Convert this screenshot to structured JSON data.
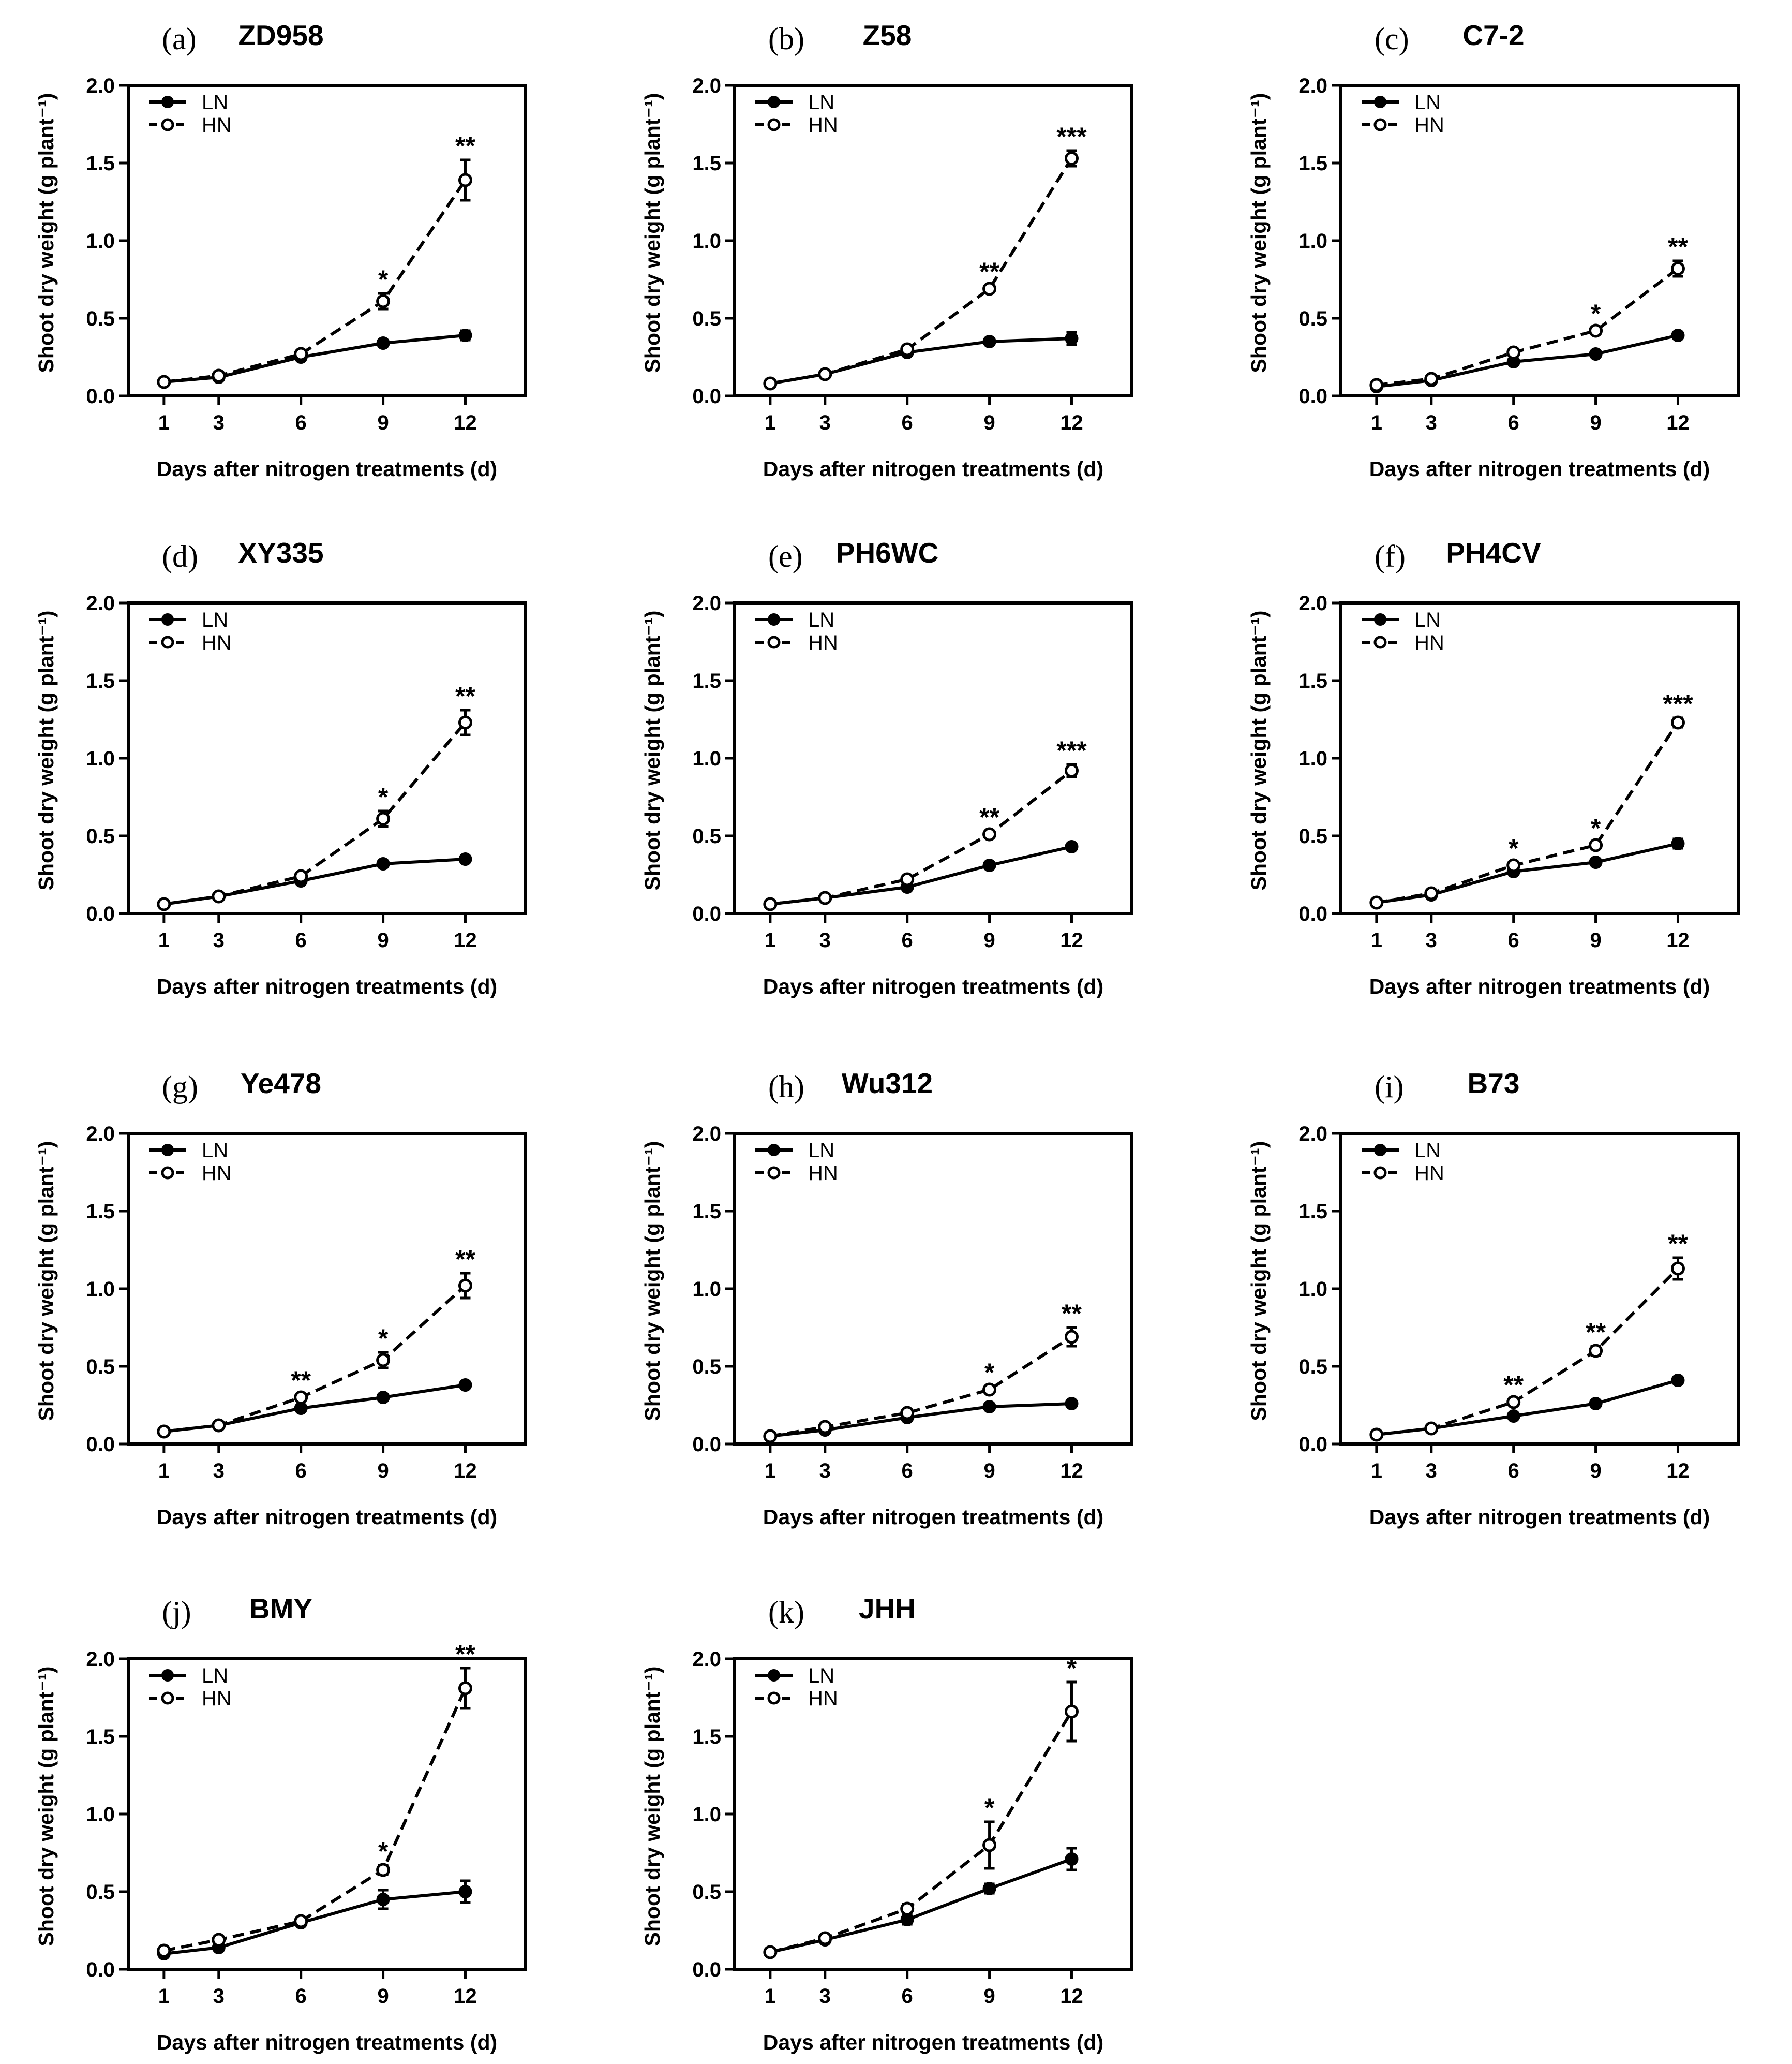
{
  "chart_data": [
    {
      "type": "line",
      "panel": "(a)",
      "title": "ZD958",
      "xlabel": "Days after nitrogen treatments (d)",
      "ylabel": "Shoot dry weight (g plant⁻¹)",
      "categories": [
        "1",
        "3",
        "6",
        "9",
        "12"
      ],
      "ylim": [
        0,
        2.0
      ],
      "yticks": [
        "0.0",
        "0.5",
        "1.0",
        "1.5",
        "2.0"
      ],
      "series": [
        {
          "name": "LN",
          "values": [
            0.09,
            0.12,
            0.25,
            0.34,
            0.39
          ],
          "errors": [
            0.01,
            0.01,
            0.01,
            0.02,
            0.03
          ]
        },
        {
          "name": "HN",
          "values": [
            0.09,
            0.13,
            0.27,
            0.61,
            1.39
          ],
          "errors": [
            0.01,
            0.01,
            0.02,
            0.05,
            0.13
          ]
        }
      ],
      "significance": [
        "",
        "",
        "",
        "*",
        "**"
      ],
      "legend": "top-left",
      "grid": false
    },
    {
      "type": "line",
      "panel": "(b)",
      "title": "Z58",
      "xlabel": "Days after nitrogen treatments (d)",
      "ylabel": "Shoot dry weight (g plant⁻¹)",
      "categories": [
        "1",
        "3",
        "6",
        "9",
        "12"
      ],
      "ylim": [
        0,
        2.0
      ],
      "yticks": [
        "0.0",
        "0.5",
        "1.0",
        "1.5",
        "2.0"
      ],
      "series": [
        {
          "name": "LN",
          "values": [
            0.08,
            0.14,
            0.28,
            0.35,
            0.37
          ],
          "errors": [
            0.01,
            0.01,
            0.01,
            0.01,
            0.04
          ]
        },
        {
          "name": "HN",
          "values": [
            0.08,
            0.14,
            0.3,
            0.69,
            1.53
          ],
          "errors": [
            0.01,
            0.01,
            0.01,
            0.02,
            0.05
          ]
        }
      ],
      "significance": [
        "",
        "",
        "",
        "**",
        "***"
      ],
      "legend": "top-left",
      "grid": false
    },
    {
      "type": "line",
      "panel": "(c)",
      "title": "C7-2",
      "xlabel": "Days after nitrogen treatments (d)",
      "ylabel": "Shoot dry weight (g plant⁻¹)",
      "categories": [
        "1",
        "3",
        "6",
        "9",
        "12"
      ],
      "ylim": [
        0,
        2.0
      ],
      "yticks": [
        "0.0",
        "0.5",
        "1.0",
        "1.5",
        "2.0"
      ],
      "series": [
        {
          "name": "LN",
          "values": [
            0.06,
            0.1,
            0.22,
            0.27,
            0.39
          ],
          "errors": [
            0.01,
            0.01,
            0.01,
            0.01,
            0.01
          ]
        },
        {
          "name": "HN",
          "values": [
            0.07,
            0.11,
            0.28,
            0.42,
            0.82
          ],
          "errors": [
            0.01,
            0.01,
            0.01,
            0.02,
            0.05
          ]
        }
      ],
      "significance": [
        "",
        "",
        "",
        "*",
        "**"
      ],
      "legend": "top-left",
      "grid": false
    },
    {
      "type": "line",
      "panel": "(d)",
      "title": "XY335",
      "xlabel": "Days after nitrogen treatments (d)",
      "ylabel": "Shoot dry weight (g plant⁻¹)",
      "categories": [
        "1",
        "3",
        "6",
        "9",
        "12"
      ],
      "ylim": [
        0,
        2.0
      ],
      "yticks": [
        "0.0",
        "0.5",
        "1.0",
        "1.5",
        "2.0"
      ],
      "series": [
        {
          "name": "LN",
          "values": [
            0.06,
            0.11,
            0.21,
            0.32,
            0.35
          ],
          "errors": [
            0.01,
            0.01,
            0.01,
            0.02,
            0.02
          ]
        },
        {
          "name": "HN",
          "values": [
            0.06,
            0.11,
            0.24,
            0.61,
            1.23
          ],
          "errors": [
            0.01,
            0.01,
            0.01,
            0.05,
            0.08
          ]
        }
      ],
      "significance": [
        "",
        "",
        "",
        "*",
        "**"
      ],
      "legend": "top-left",
      "grid": false
    },
    {
      "type": "line",
      "panel": "(e)",
      "title": "PH6WC",
      "xlabel": "Days after nitrogen treatments (d)",
      "ylabel": "Shoot dry weight (g plant⁻¹)",
      "categories": [
        "1",
        "3",
        "6",
        "9",
        "12"
      ],
      "ylim": [
        0,
        2.0
      ],
      "yticks": [
        "0.0",
        "0.5",
        "1.0",
        "1.5",
        "2.0"
      ],
      "series": [
        {
          "name": "LN",
          "values": [
            0.06,
            0.1,
            0.17,
            0.31,
            0.43
          ],
          "errors": [
            0.01,
            0.01,
            0.01,
            0.01,
            0.01
          ]
        },
        {
          "name": "HN",
          "values": [
            0.06,
            0.1,
            0.22,
            0.51,
            0.92
          ],
          "errors": [
            0.01,
            0.01,
            0.01,
            0.02,
            0.04
          ]
        }
      ],
      "significance": [
        "",
        "",
        "",
        "**",
        "***"
      ],
      "legend": "top-left",
      "grid": false
    },
    {
      "type": "line",
      "panel": "(f)",
      "title": "PH4CV",
      "xlabel": "Days after nitrogen treatments (d)",
      "ylabel": "Shoot dry weight (g plant⁻¹)",
      "categories": [
        "1",
        "3",
        "6",
        "9",
        "12"
      ],
      "ylim": [
        0,
        2.0
      ],
      "yticks": [
        "0.0",
        "0.5",
        "1.0",
        "1.5",
        "2.0"
      ],
      "series": [
        {
          "name": "LN",
          "values": [
            0.07,
            0.12,
            0.27,
            0.33,
            0.45
          ],
          "errors": [
            0.01,
            0.01,
            0.01,
            0.01,
            0.03
          ]
        },
        {
          "name": "HN",
          "values": [
            0.07,
            0.13,
            0.31,
            0.44,
            1.23
          ],
          "errors": [
            0.01,
            0.01,
            0.02,
            0.02,
            0.03
          ]
        }
      ],
      "significance": [
        "",
        "",
        "*",
        "*",
        "***"
      ],
      "legend": "top-left",
      "grid": false
    },
    {
      "type": "line",
      "panel": "(g)",
      "title": "Ye478",
      "xlabel": "Days after nitrogen treatments (d)",
      "ylabel": "Shoot dry weight (g plant⁻¹)",
      "categories": [
        "1",
        "3",
        "6",
        "9",
        "12"
      ],
      "ylim": [
        0,
        2.0
      ],
      "yticks": [
        "0.0",
        "0.5",
        "1.0",
        "1.5",
        "2.0"
      ],
      "series": [
        {
          "name": "LN",
          "values": [
            0.08,
            0.12,
            0.23,
            0.3,
            0.38
          ],
          "errors": [
            0.01,
            0.01,
            0.01,
            0.01,
            0.02
          ]
        },
        {
          "name": "HN",
          "values": [
            0.08,
            0.12,
            0.3,
            0.54,
            1.02
          ],
          "errors": [
            0.01,
            0.01,
            0.02,
            0.05,
            0.08
          ]
        }
      ],
      "significance": [
        "",
        "",
        "**",
        "*",
        "**"
      ],
      "legend": "top-left",
      "grid": false
    },
    {
      "type": "line",
      "panel": "(h)",
      "title": "Wu312",
      "xlabel": "Days after nitrogen treatments (d)",
      "ylabel": "Shoot dry weight (g plant⁻¹)",
      "categories": [
        "1",
        "3",
        "6",
        "9",
        "12"
      ],
      "ylim": [
        0,
        2.0
      ],
      "yticks": [
        "0.0",
        "0.5",
        "1.0",
        "1.5",
        "2.0"
      ],
      "series": [
        {
          "name": "LN",
          "values": [
            0.05,
            0.09,
            0.17,
            0.24,
            0.26
          ],
          "errors": [
            0.01,
            0.01,
            0.01,
            0.01,
            0.01
          ]
        },
        {
          "name": "HN",
          "values": [
            0.05,
            0.11,
            0.2,
            0.35,
            0.69
          ],
          "errors": [
            0.01,
            0.01,
            0.01,
            0.02,
            0.06
          ]
        }
      ],
      "significance": [
        "",
        "",
        "",
        "*",
        "**"
      ],
      "legend": "top-left",
      "grid": false
    },
    {
      "type": "line",
      "panel": "(i)",
      "title": "B73",
      "xlabel": "Days after nitrogen treatments (d)",
      "ylabel": "Shoot dry weight (g plant⁻¹)",
      "categories": [
        "1",
        "3",
        "6",
        "9",
        "12"
      ],
      "ylim": [
        0,
        2.0
      ],
      "yticks": [
        "0.0",
        "0.5",
        "1.0",
        "1.5",
        "2.0"
      ],
      "series": [
        {
          "name": "LN",
          "values": [
            0.06,
            0.1,
            0.18,
            0.26,
            0.41
          ],
          "errors": [
            0.01,
            0.01,
            0.01,
            0.01,
            0.02
          ]
        },
        {
          "name": "HN",
          "values": [
            0.06,
            0.1,
            0.27,
            0.6,
            1.13
          ],
          "errors": [
            0.01,
            0.01,
            0.02,
            0.03,
            0.07
          ]
        }
      ],
      "significance": [
        "",
        "",
        "**",
        "**",
        "**"
      ],
      "legend": "top-left",
      "grid": false
    },
    {
      "type": "line",
      "panel": "(j)",
      "title": "BMY",
      "xlabel": "Days after nitrogen treatments (d)",
      "ylabel": "Shoot dry weight (g plant⁻¹)",
      "categories": [
        "1",
        "3",
        "6",
        "9",
        "12"
      ],
      "ylim": [
        0,
        2.0
      ],
      "yticks": [
        "0.0",
        "0.5",
        "1.0",
        "1.5",
        "2.0"
      ],
      "series": [
        {
          "name": "LN",
          "values": [
            0.1,
            0.14,
            0.3,
            0.45,
            0.5
          ],
          "errors": [
            0.01,
            0.01,
            0.02,
            0.06,
            0.07
          ]
        },
        {
          "name": "HN",
          "values": [
            0.12,
            0.19,
            0.31,
            0.64,
            1.81
          ],
          "errors": [
            0.01,
            0.01,
            0.02,
            0.03,
            0.13
          ]
        }
      ],
      "significance": [
        "",
        "",
        "",
        "*",
        "**"
      ],
      "legend": "top-left",
      "grid": false
    },
    {
      "type": "line",
      "panel": "(k)",
      "title": "JHH",
      "xlabel": "Days after nitrogen treatments (d)",
      "ylabel": "Shoot dry weight (g plant⁻¹)",
      "categories": [
        "1",
        "3",
        "6",
        "9",
        "12"
      ],
      "ylim": [
        0,
        2.0
      ],
      "yticks": [
        "0.0",
        "0.5",
        "1.0",
        "1.5",
        "2.0"
      ],
      "series": [
        {
          "name": "LN",
          "values": [
            0.11,
            0.19,
            0.32,
            0.52,
            0.71
          ],
          "errors": [
            0.01,
            0.01,
            0.03,
            0.03,
            0.07
          ]
        },
        {
          "name": "HN",
          "values": [
            0.11,
            0.2,
            0.39,
            0.8,
            1.66
          ],
          "errors": [
            0.01,
            0.01,
            0.03,
            0.15,
            0.19
          ]
        }
      ],
      "significance": [
        "",
        "",
        "",
        "*",
        "*"
      ],
      "legend": "top-left",
      "grid": false
    }
  ]
}
